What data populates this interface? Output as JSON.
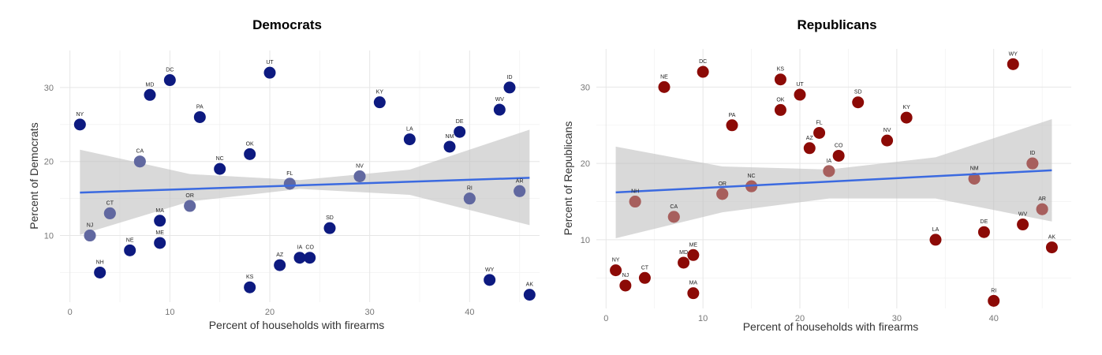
{
  "chart_data": [
    {
      "type": "scatter",
      "title": "Democrats",
      "xlabel": "Percent of households with firearms",
      "ylabel": "Percent of Democrats",
      "xlim": [
        -1,
        47
      ],
      "ylim": [
        1,
        35
      ],
      "xticks": [
        0,
        10,
        20,
        30,
        40
      ],
      "yticks": [
        10,
        20,
        30
      ],
      "grid": true,
      "point_color": "#0d1a80",
      "trend": {
        "x0": 1,
        "y0": 15.8,
        "x1": 46,
        "y1": 17.8,
        "color": "#3b6ae0"
      },
      "band": {
        "upper": [
          21.6,
          18.3,
          17.5,
          18.9,
          24.3
        ],
        "lower": [
          10.1,
          14.6,
          16.3,
          15.5,
          11.4
        ],
        "x": [
          1,
          12,
          23,
          34,
          46
        ],
        "color": "#bfbfbf"
      },
      "points": [
        {
          "label": "NY",
          "x": 1,
          "y": 25
        },
        {
          "label": "NJ",
          "x": 2,
          "y": 10
        },
        {
          "label": "NH",
          "x": 3,
          "y": 5
        },
        {
          "label": "CT",
          "x": 4,
          "y": 13
        },
        {
          "label": "NE",
          "x": 6,
          "y": 8
        },
        {
          "label": "CA",
          "x": 7,
          "y": 20
        },
        {
          "label": "MD",
          "x": 8,
          "y": 29
        },
        {
          "label": "MA",
          "x": 9,
          "y": 12
        },
        {
          "label": "ME",
          "x": 9,
          "y": 9
        },
        {
          "label": "DC",
          "x": 10,
          "y": 31
        },
        {
          "label": "OR",
          "x": 12,
          "y": 14
        },
        {
          "label": "PA",
          "x": 13,
          "y": 26
        },
        {
          "label": "NC",
          "x": 15,
          "y": 19
        },
        {
          "label": "OK",
          "x": 18,
          "y": 21
        },
        {
          "label": "KS",
          "x": 18,
          "y": 3
        },
        {
          "label": "UT",
          "x": 20,
          "y": 32
        },
        {
          "label": "AZ",
          "x": 21,
          "y": 6
        },
        {
          "label": "FL",
          "x": 22,
          "y": 17
        },
        {
          "label": "IA",
          "x": 23,
          "y": 7
        },
        {
          "label": "CO",
          "x": 24,
          "y": 7
        },
        {
          "label": "SD",
          "x": 26,
          "y": 11
        },
        {
          "label": "NV",
          "x": 29,
          "y": 18
        },
        {
          "label": "KY",
          "x": 31,
          "y": 28
        },
        {
          "label": "LA",
          "x": 34,
          "y": 23
        },
        {
          "label": "NM",
          "x": 38,
          "y": 22
        },
        {
          "label": "DE",
          "x": 39,
          "y": 24
        },
        {
          "label": "RI",
          "x": 40,
          "y": 15
        },
        {
          "label": "WY",
          "x": 42,
          "y": 4
        },
        {
          "label": "WV",
          "x": 43,
          "y": 27
        },
        {
          "label": "ID",
          "x": 44,
          "y": 30
        },
        {
          "label": "AR",
          "x": 45,
          "y": 16
        },
        {
          "label": "AK",
          "x": 46,
          "y": 2
        }
      ]
    },
    {
      "type": "scatter",
      "title": "Republicans",
      "xlabel": "Percent of households with firearms",
      "ylabel": "Percent of Republicans",
      "xlim": [
        -1,
        48
      ],
      "ylim": [
        1,
        35
      ],
      "xticks": [
        0,
        10,
        20,
        30,
        40
      ],
      "yticks": [
        10,
        20,
        30
      ],
      "grid": true,
      "point_color": "#8c0a06",
      "trend": {
        "x0": 1,
        "y0": 16.2,
        "x1": 46,
        "y1": 19.1,
        "color": "#3b6ae0"
      },
      "band": {
        "upper": [
          22.2,
          19.6,
          19.2,
          20.8,
          25.8
        ],
        "lower": [
          10.2,
          13.6,
          15.4,
          15.4,
          12.4
        ],
        "x": [
          1,
          12,
          23,
          34,
          46
        ],
        "color": "#bfbfbf"
      },
      "points": [
        {
          "label": "NY",
          "x": 1,
          "y": 6
        },
        {
          "label": "NJ",
          "x": 2,
          "y": 4
        },
        {
          "label": "NH",
          "x": 3,
          "y": 15
        },
        {
          "label": "CT",
          "x": 4,
          "y": 5
        },
        {
          "label": "NE",
          "x": 6,
          "y": 30
        },
        {
          "label": "CA",
          "x": 7,
          "y": 13
        },
        {
          "label": "MD",
          "x": 8,
          "y": 7
        },
        {
          "label": "ME",
          "x": 9,
          "y": 8
        },
        {
          "label": "MA",
          "x": 9,
          "y": 3
        },
        {
          "label": "DC",
          "x": 10,
          "y": 32
        },
        {
          "label": "OR",
          "x": 12,
          "y": 16
        },
        {
          "label": "PA",
          "x": 13,
          "y": 25
        },
        {
          "label": "NC",
          "x": 15,
          "y": 17
        },
        {
          "label": "KS",
          "x": 18,
          "y": 31
        },
        {
          "label": "OK",
          "x": 18,
          "y": 27
        },
        {
          "label": "UT",
          "x": 20,
          "y": 29
        },
        {
          "label": "AZ",
          "x": 21,
          "y": 22
        },
        {
          "label": "FL",
          "x": 22,
          "y": 24
        },
        {
          "label": "IA",
          "x": 23,
          "y": 19
        },
        {
          "label": "CO",
          "x": 24,
          "y": 21
        },
        {
          "label": "SD",
          "x": 26,
          "y": 28
        },
        {
          "label": "NV",
          "x": 29,
          "y": 23
        },
        {
          "label": "KY",
          "x": 31,
          "y": 26
        },
        {
          "label": "LA",
          "x": 34,
          "y": 10
        },
        {
          "label": "NM",
          "x": 38,
          "y": 18
        },
        {
          "label": "DE",
          "x": 39,
          "y": 11
        },
        {
          "label": "RI",
          "x": 40,
          "y": 2
        },
        {
          "label": "WY",
          "x": 42,
          "y": 33
        },
        {
          "label": "WV",
          "x": 43,
          "y": 12
        },
        {
          "label": "ID",
          "x": 44,
          "y": 20
        },
        {
          "label": "AR",
          "x": 45,
          "y": 14
        },
        {
          "label": "AK",
          "x": 46,
          "y": 9
        }
      ]
    }
  ]
}
